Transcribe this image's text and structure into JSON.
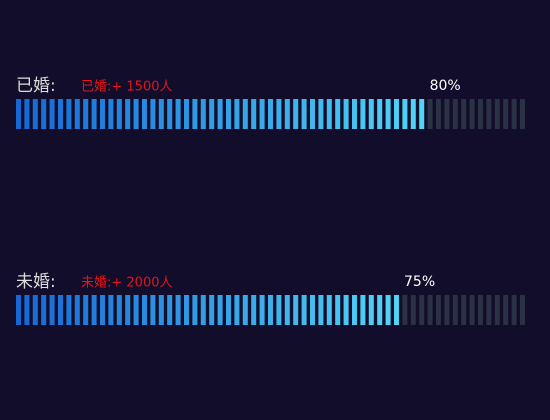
{
  "chart_data": {
    "type": "progress",
    "categories": [
      "已婚:",
      "未婚:"
    ],
    "annotations": [
      "已婚:+ 1500人",
      "未婚:+ 2000人"
    ],
    "values": [
      80,
      75
    ],
    "value_labels": [
      "80%",
      "75%"
    ],
    "xlim": [
      0,
      100
    ],
    "colors": [
      "#1567d6",
      "#52d6f7"
    ],
    "track_color": "#2b3245",
    "annotation_color": "#e3151d"
  }
}
